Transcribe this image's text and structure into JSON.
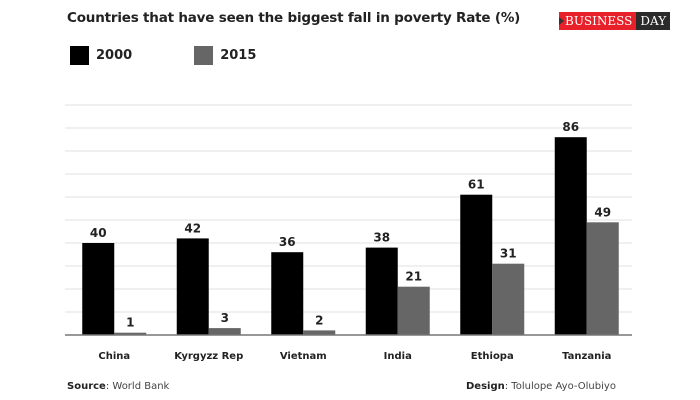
{
  "header": {
    "title": "Countries that have seen the biggest fall in poverty Rate (%)",
    "logo_left": "BUSINESS",
    "logo_right": "DAY"
  },
  "footer": {
    "source_label": "Source",
    "source_value": ": World Bank",
    "design_label": "Design",
    "design_value": ": Tolulope Ayo-Olubiyo"
  },
  "chart_data": {
    "type": "bar",
    "title": "Countries that have seen the biggest fall in poverty Rate (%)",
    "xlabel": "",
    "ylabel": "",
    "ylim": [
      0,
      100
    ],
    "grid": true,
    "legend_position": "top-left",
    "categories": [
      "China",
      "Kyrgyzz Rep",
      "Vietnam",
      "India",
      "Ethiopa",
      "Tanzania"
    ],
    "series": [
      {
        "name": "2000",
        "color": "#000000",
        "values": [
          40,
          42,
          36,
          38,
          61,
          86
        ]
      },
      {
        "name": "2015",
        "color": "#666666",
        "values": [
          1,
          3,
          2,
          21,
          31,
          49
        ]
      }
    ]
  }
}
